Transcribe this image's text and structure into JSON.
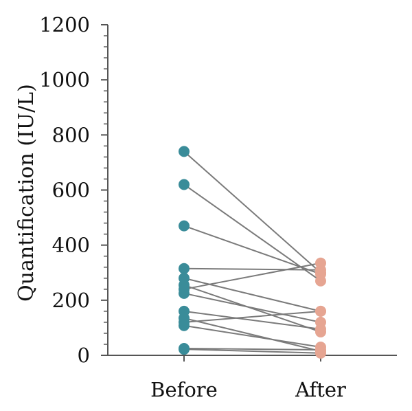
{
  "chart_data": {
    "type": "scatter",
    "subtype": "paired-dot-plot",
    "title": "",
    "xlabel": "",
    "ylabel": "Quantification (IU/L)",
    "categories": [
      "Before",
      "After"
    ],
    "ylim": [
      0,
      1200
    ],
    "yticks": [
      "0",
      "200",
      "400",
      "600",
      "800",
      "1000",
      "1200"
    ],
    "yticks_values": [
      0,
      200,
      400,
      600,
      800,
      1000,
      1200
    ],
    "minor_ticks_per_major": 4,
    "grid": false,
    "colors": {
      "before": "#3a8c99",
      "after": "#e6a592",
      "line": "#7a7a7a",
      "axis": "#555555"
    },
    "pairs": [
      {
        "before": 740,
        "after": 300
      },
      {
        "before": 620,
        "after": 270
      },
      {
        "before": 470,
        "after": 295
      },
      {
        "before": 315,
        "after": 310
      },
      {
        "before": 280,
        "after": 160
      },
      {
        "before": 255,
        "after": 85
      },
      {
        "before": 240,
        "after": 335
      },
      {
        "before": 225,
        "after": 120
      },
      {
        "before": 160,
        "after": 95
      },
      {
        "before": 135,
        "after": 15
      },
      {
        "before": 120,
        "after": 160
      },
      {
        "before": 108,
        "after": 30
      },
      {
        "before": 25,
        "after": 20
      },
      {
        "before": 22,
        "after": 8
      }
    ]
  }
}
